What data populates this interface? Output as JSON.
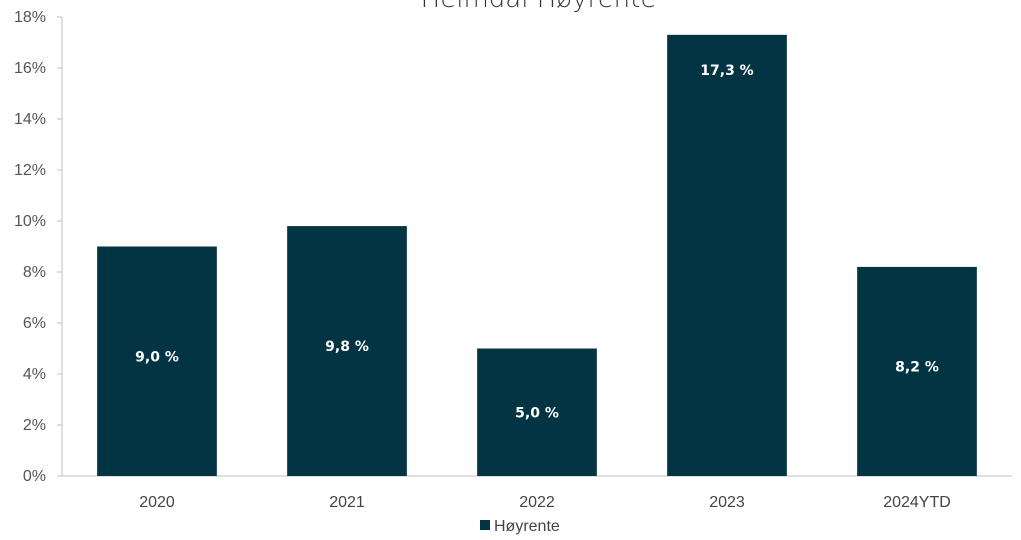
{
  "chart_data": {
    "type": "bar",
    "title": "Heimdal Høyrente",
    "categories": [
      "2020",
      "2021",
      "2022",
      "2023",
      "2024YTD"
    ],
    "series": [
      {
        "name": "Høyrente",
        "values": [
          9.0,
          9.8,
          5.0,
          17.3,
          8.2
        ],
        "color": "#033443"
      }
    ],
    "data_labels": [
      "9,0 %",
      "9,8 %",
      "5,0 %",
      "17,3 %",
      "8,2 %"
    ],
    "yticks": [
      "0%",
      "2%",
      "4%",
      "6%",
      "8%",
      "10%",
      "12%",
      "14%",
      "16%",
      "18%"
    ],
    "ylim": [
      0,
      18
    ],
    "grid": false,
    "legend": "bottom-center"
  }
}
